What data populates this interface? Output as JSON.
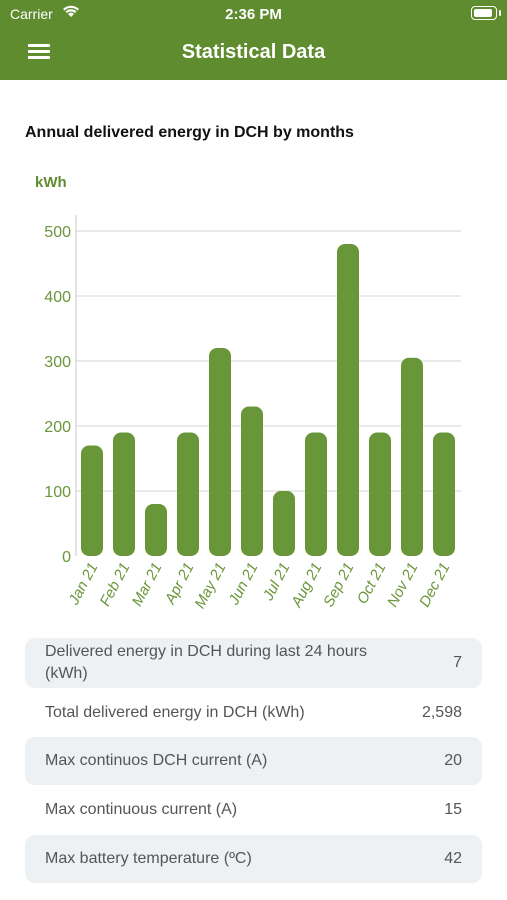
{
  "status_bar": {
    "carrier": "Carrier",
    "time": "2:36 PM"
  },
  "nav": {
    "title": "Statistical Data"
  },
  "chart_heading": "Annual delivered energy in DCH by months",
  "colors": {
    "brand": "#5e8c2f",
    "bar": "#6a963a",
    "row_bg": "#edf1f4"
  },
  "chart_data": {
    "type": "bar",
    "title": "Annual delivered energy in DCH by months",
    "ylabel": "kWh",
    "xlabel": "",
    "categories": [
      "Jan 21",
      "Feb 21",
      "Mar 21",
      "Apr 21",
      "May 21",
      "Jun 21",
      "Jul 21",
      "Aug 21",
      "Sep 21",
      "Oct 21",
      "Nov 21",
      "Dec 21"
    ],
    "values": [
      170,
      190,
      80,
      190,
      320,
      230,
      100,
      190,
      480,
      190,
      305,
      190
    ],
    "ylim": [
      0,
      500
    ],
    "yticks": [
      0,
      100,
      200,
      300,
      400,
      500
    ],
    "grid": true
  },
  "stats": [
    {
      "label": "Delivered energy in DCH during last 24 hours (kWh)",
      "value": "7"
    },
    {
      "label": "Total delivered energy in DCH (kWh)",
      "value": "2,598"
    },
    {
      "label": "Max continuos DCH current (A)",
      "value": "20"
    },
    {
      "label": "Max continuous current (A)",
      "value": "15"
    },
    {
      "label": "Max battery temperature (ºC)",
      "value": "42"
    }
  ]
}
